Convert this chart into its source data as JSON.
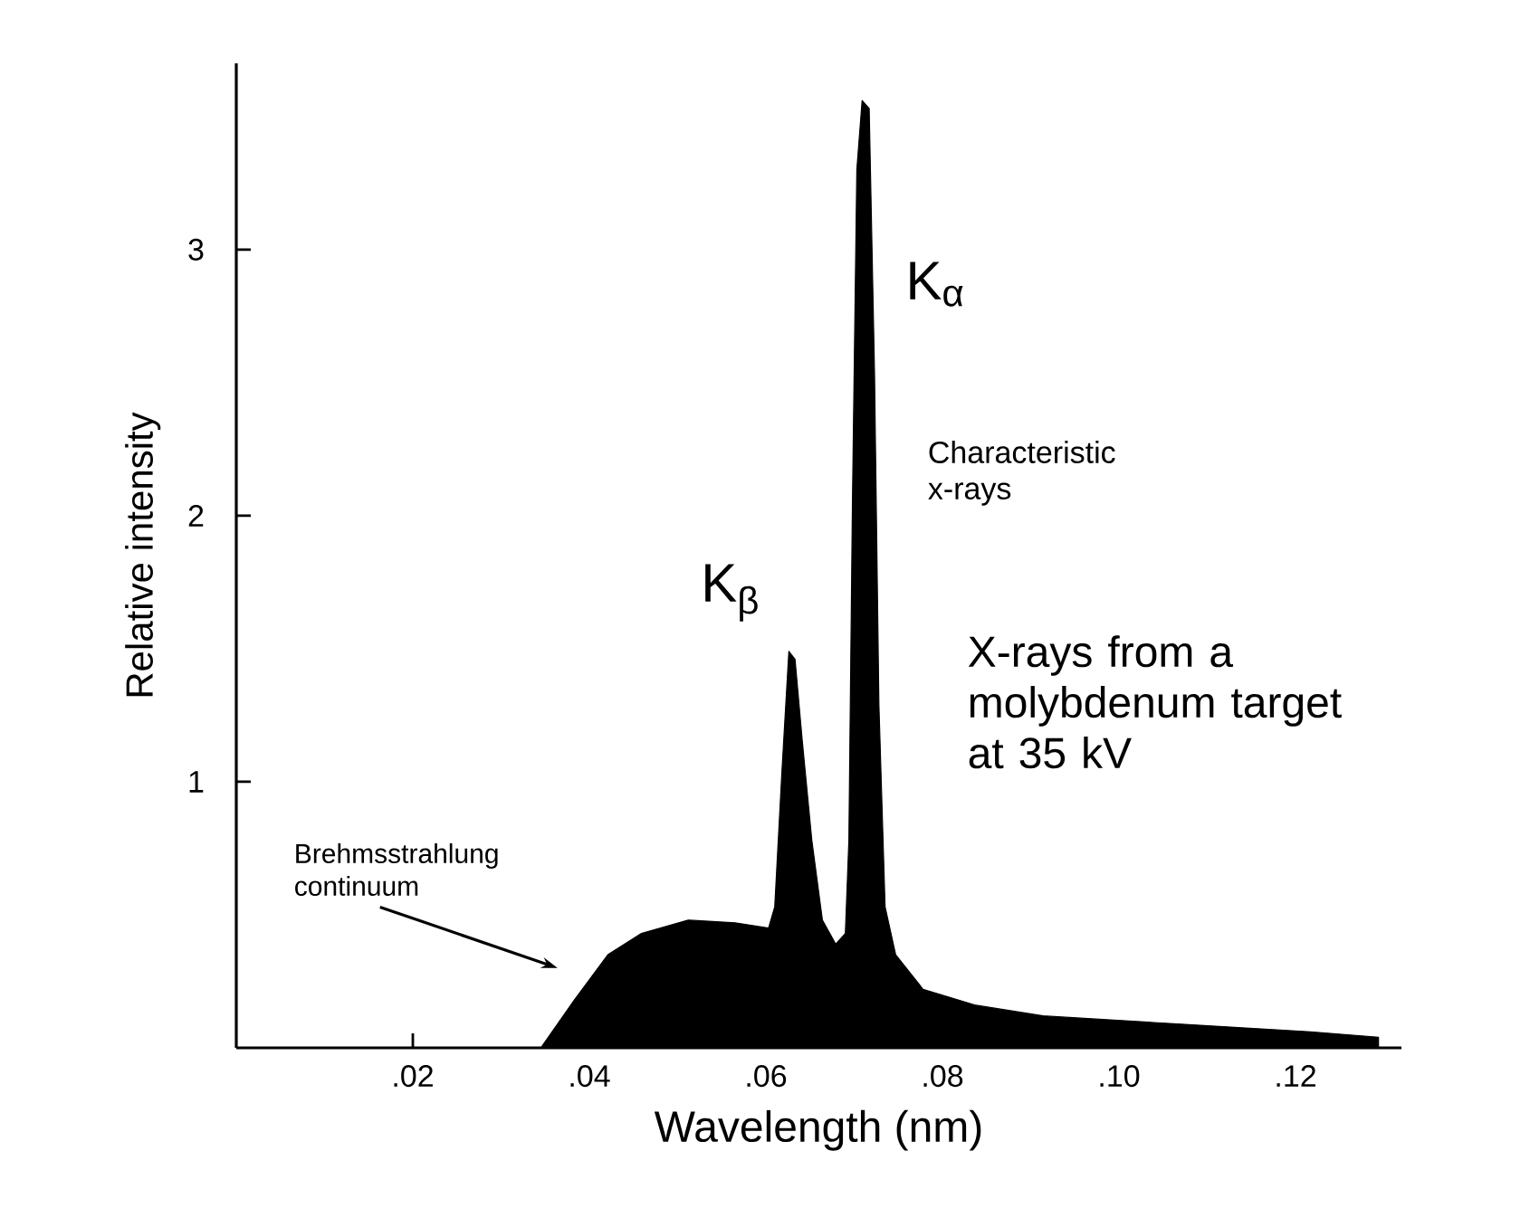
{
  "chart_data": {
    "type": "area",
    "xlabel": "Wavelength (nm)",
    "ylabel": "Relative intensity",
    "color": "#000000",
    "x": [
      0.0345,
      0.0383,
      0.0421,
      0.0459,
      0.0512,
      0.0565,
      0.0603,
      0.061,
      0.0618,
      0.0626,
      0.0633,
      0.0641,
      0.0652,
      0.0664,
      0.0679,
      0.069,
      0.0694,
      0.0698,
      0.0703,
      0.0709,
      0.0717,
      0.0723,
      0.0728,
      0.0735,
      0.0747,
      0.0778,
      0.0838,
      0.0914,
      0.1066,
      0.1217,
      0.1294
    ],
    "values": [
      0,
      0.18,
      0.35,
      0.43,
      0.48,
      0.47,
      0.45,
      0.53,
      1.03,
      1.49,
      1.46,
      1.16,
      0.78,
      0.48,
      0.39,
      0.43,
      0.78,
      2.04,
      3.3,
      3.56,
      3.53,
      2.54,
      1.29,
      0.53,
      0.35,
      0.22,
      0.16,
      0.12,
      0.09,
      0.06,
      0.04
    ],
    "xlim": [
      0,
      0.132
    ],
    "ylim": [
      0,
      3.7
    ],
    "xticks": [
      {
        "value": 0.02,
        "label": ".02"
      },
      {
        "value": 0.04,
        "label": ".04"
      },
      {
        "value": 0.06,
        "label": ".06"
      },
      {
        "value": 0.08,
        "label": ".08"
      },
      {
        "value": 0.1,
        "label": ".10"
      },
      {
        "value": 0.12,
        "label": ".12"
      }
    ],
    "yticks": [
      1,
      2,
      3
    ],
    "annotations": [
      "K$_{β}$",
      "K$_{α}$",
      "Characteristic x-rays",
      "X-rays from a molybdenum target at 35 kV",
      "Brehmsstrahlung continuum"
    ]
  }
}
